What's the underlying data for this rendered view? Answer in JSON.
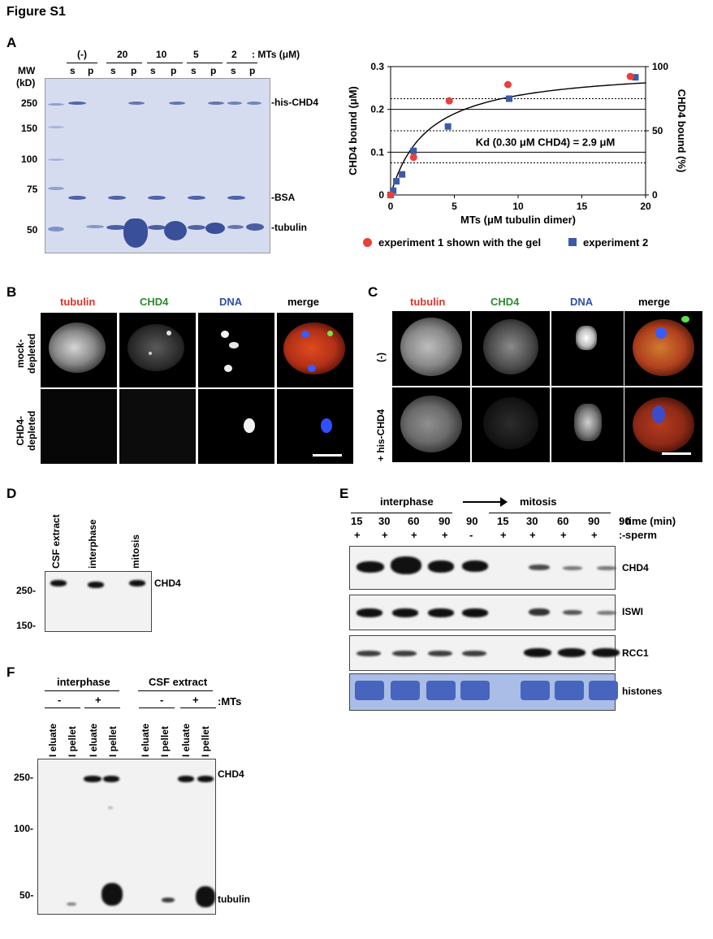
{
  "figure_title": "Figure S1",
  "panelA": {
    "label": "A",
    "mw_title": "MW",
    "kd_title": "(kD)",
    "mw_markers": [
      "250",
      "150",
      "100",
      "75",
      "50"
    ],
    "conc_groups": [
      "(-)",
      "20",
      "10",
      "5",
      "2"
    ],
    "conc_suffix": ": MTs (μM)",
    "lane_labels": [
      "s",
      "p",
      "s",
      "p",
      "s",
      "p",
      "s",
      "p",
      "s",
      "p"
    ],
    "band_labels": [
      "-his-CHD4",
      "-BSA",
      "-tubulin"
    ]
  },
  "chart_data": {
    "type": "scatter",
    "title": "",
    "xlabel": "MTs (μM tubulin dimer)",
    "ylabel": "CHD4 bound (μM)",
    "y2label": "CHD4 bound (%)",
    "xlim": [
      0,
      20
    ],
    "ylim": [
      0,
      0.3
    ],
    "y2lim": [
      0,
      100
    ],
    "xticks": [
      "0",
      "5",
      "10",
      "15",
      "20"
    ],
    "yticks": [
      "0",
      "0.1",
      "0.2",
      "0.3"
    ],
    "y2ticks": [
      "0",
      "50",
      "100"
    ],
    "annotation": "Kd (0.30 μM CHD4) = 2.9 μM",
    "series": [
      {
        "name": "experiment 1 shown with the gel",
        "marker": "circle",
        "color": "#e8403a",
        "x": [
          0,
          1.8,
          4.6,
          9.2,
          18.8
        ],
        "y": [
          0,
          0.088,
          0.22,
          0.258,
          0.277
        ]
      },
      {
        "name": "experiment 2",
        "marker": "square",
        "color": "#3d5aa8",
        "x": [
          0,
          0.2,
          0.45,
          0.9,
          1.8,
          4.5,
          9.3,
          19.2
        ],
        "y": [
          0,
          0.01,
          0.032,
          0.048,
          0.103,
          0.16,
          0.225,
          0.275
        ]
      }
    ],
    "fit_curve": {
      "type": "binding hyperbola",
      "kd": 2.9,
      "bmax": 0.3
    }
  },
  "panelB": {
    "label": "B",
    "channels": [
      {
        "name": "tubulin",
        "color": "#d9352b"
      },
      {
        "name": "CHD4",
        "color": "#2c8a2c"
      },
      {
        "name": "DNA",
        "color": "#2f4fa6"
      },
      {
        "name": "merge",
        "color": "#000000"
      }
    ],
    "rows": [
      "mock-\ndepleted",
      "CHD4-\ndepleted"
    ]
  },
  "panelC": {
    "label": "C",
    "channels": [
      {
        "name": "tubulin",
        "color": "#d9352b"
      },
      {
        "name": "CHD4",
        "color": "#2c8a2c"
      },
      {
        "name": "DNA",
        "color": "#2f4fa6"
      },
      {
        "name": "merge",
        "color": "#000000"
      }
    ],
    "rows": [
      "(-)",
      "+ his-CHD4"
    ]
  },
  "panelD": {
    "label": "D",
    "lanes": [
      "CSF extract",
      "interphase",
      "mitosis"
    ],
    "markers": [
      "250-",
      "150-"
    ],
    "band_label": "CHD4"
  },
  "panelE": {
    "label": "E",
    "interphase": "interphase",
    "mitosis": "mitosis",
    "times": [
      "15",
      "30",
      "60",
      "90",
      "90",
      "15",
      "30",
      "60",
      "90",
      "90"
    ],
    "sperm": [
      "+",
      "+",
      "+",
      "+",
      "-",
      "+",
      "+",
      "+",
      "+",
      "-"
    ],
    "time_label": ": time (min)",
    "sperm_label": ": sperm",
    "blots": [
      "CHD4",
      "ISWI",
      "RCC1",
      "histones"
    ]
  },
  "panelF": {
    "label": "F",
    "group1": "interphase",
    "group2": "CSF extract",
    "mts": [
      "-",
      "+",
      "-",
      "+"
    ],
    "mts_label": ":MTs",
    "lanes": [
      "eluate",
      "pellet",
      "eluate",
      "pellet",
      "eluate",
      "pellet",
      "eluate",
      "pellet"
    ],
    "markers": [
      "250-",
      "100-",
      "50-"
    ],
    "band_labels": [
      "CHD4",
      "tubulin"
    ]
  }
}
